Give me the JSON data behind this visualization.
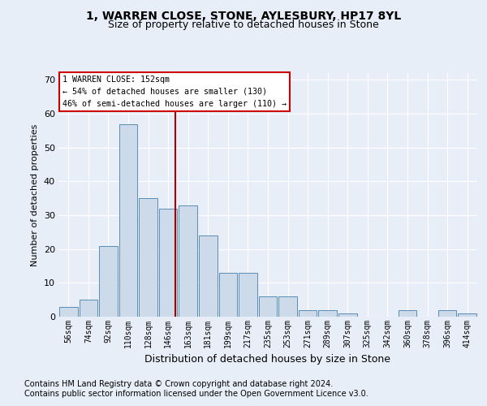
{
  "title": "1, WARREN CLOSE, STONE, AYLESBURY, HP17 8YL",
  "subtitle": "Size of property relative to detached houses in Stone",
  "xlabel": "Distribution of detached houses by size in Stone",
  "ylabel": "Number of detached properties",
  "footnote1": "Contains HM Land Registry data © Crown copyright and database right 2024.",
  "footnote2": "Contains public sector information licensed under the Open Government Licence v3.0.",
  "annotation_line1": "1 WARREN CLOSE: 152sqm",
  "annotation_line2": "← 54% of detached houses are smaller (130)",
  "annotation_line3": "46% of semi-detached houses are larger (110) →",
  "bins": [
    "56sqm",
    "74sqm",
    "92sqm",
    "110sqm",
    "128sqm",
    "146sqm",
    "163sqm",
    "181sqm",
    "199sqm",
    "217sqm",
    "235sqm",
    "253sqm",
    "271sqm",
    "289sqm",
    "307sqm",
    "325sqm",
    "342sqm",
    "360sqm",
    "378sqm",
    "396sqm",
    "414sqm"
  ],
  "values": [
    3,
    5,
    21,
    57,
    35,
    32,
    33,
    24,
    13,
    13,
    6,
    6,
    2,
    2,
    1,
    0,
    0,
    2,
    0,
    2,
    1
  ],
  "bar_color": "#ccdaea",
  "bar_edge_color": "#5a8db5",
  "vline_color": "#aa0000",
  "ylim": [
    0,
    72
  ],
  "yticks": [
    0,
    10,
    20,
    30,
    40,
    50,
    60,
    70
  ],
  "bg_color": "#e8eef8",
  "plot_bg_color": "#e8eef8",
  "grid_color": "#ffffff",
  "annotation_box_color": "#cc0000",
  "title_fontsize": 10,
  "subtitle_fontsize": 9,
  "axis_label_fontsize": 8,
  "tick_fontsize": 7,
  "footnote_fontsize": 7
}
